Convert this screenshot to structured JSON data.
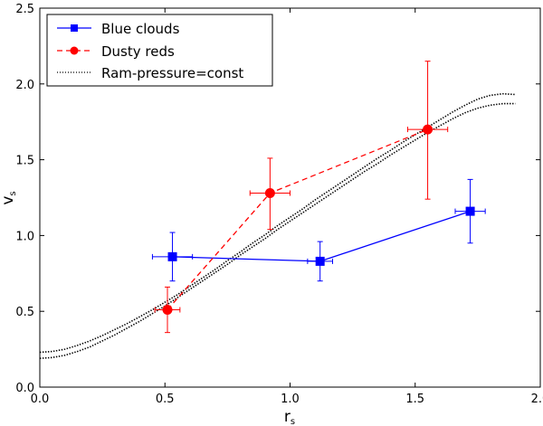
{
  "chart_data": {
    "type": "line",
    "xlabel": "r",
    "xlabel_sub": "s",
    "ylabel": "v",
    "ylabel_sub": "s",
    "xlim": [
      0.0,
      2.0
    ],
    "ylim": [
      0.0,
      2.5
    ],
    "x_ticks": [
      0.0,
      0.5,
      1.0,
      1.5,
      2.0
    ],
    "x_tick_labels": [
      "0.0",
      "0.5",
      "1.0",
      "1.5",
      "2.0"
    ],
    "y_ticks": [
      0.0,
      0.5,
      1.0,
      1.5,
      2.0,
      2.5
    ],
    "y_tick_labels": [
      "0.0",
      "0.5",
      "1.0",
      "1.5",
      "2.0",
      "2.5"
    ],
    "legend_position": "top-left",
    "series": [
      {
        "name": "Blue clouds",
        "color": "#0000ff",
        "linestyle": "solid",
        "marker": "square",
        "points": [
          {
            "x": 0.53,
            "y": 0.86,
            "xerr": 0.08,
            "yerr_low": 0.16,
            "yerr_high": 0.16
          },
          {
            "x": 1.12,
            "y": 0.83,
            "xerr": 0.05,
            "yerr_low": 0.13,
            "yerr_high": 0.13
          },
          {
            "x": 1.72,
            "y": 1.16,
            "xerr": 0.06,
            "yerr_low": 0.21,
            "yerr_high": 0.21
          }
        ]
      },
      {
        "name": "Dusty reds",
        "color": "#ff0000",
        "linestyle": "dashed",
        "marker": "circle",
        "points": [
          {
            "x": 0.51,
            "y": 0.51,
            "xerr": 0.05,
            "yerr_low": 0.15,
            "yerr_high": 0.15
          },
          {
            "x": 0.92,
            "y": 1.28,
            "xerr": 0.08,
            "yerr_low": 0.24,
            "yerr_high": 0.23
          },
          {
            "x": 1.55,
            "y": 1.7,
            "xerr": 0.08,
            "yerr_low": 0.46,
            "yerr_high": 0.45
          }
        ]
      },
      {
        "name": "Ram-pressure=const",
        "color": "#000000",
        "linestyle": "dotted",
        "marker": "none",
        "curves": [
          {
            "x": [
              0.0,
              0.05,
              0.1,
              0.15,
              0.2,
              0.25,
              0.3,
              0.35,
              0.4,
              0.45,
              0.5,
              0.55,
              0.6,
              0.65,
              0.7,
              0.75,
              0.8,
              0.85,
              0.9,
              0.95,
              1.0,
              1.05,
              1.1,
              1.15,
              1.2,
              1.25,
              1.3,
              1.35,
              1.4,
              1.45,
              1.5,
              1.55,
              1.6,
              1.65,
              1.7,
              1.75,
              1.8,
              1.85,
              1.9
            ],
            "y": [
              0.23,
              0.235,
              0.25,
              0.275,
              0.305,
              0.34,
              0.38,
              0.42,
              0.465,
              0.51,
              0.56,
              0.61,
              0.665,
              0.72,
              0.775,
              0.835,
              0.89,
              0.95,
              1.005,
              1.065,
              1.12,
              1.175,
              1.235,
              1.29,
              1.345,
              1.4,
              1.455,
              1.51,
              1.56,
              1.615,
              1.665,
              1.715,
              1.765,
              1.815,
              1.86,
              1.9,
              1.925,
              1.935,
              1.93
            ]
          },
          {
            "x": [
              0.0,
              0.05,
              0.1,
              0.15,
              0.2,
              0.25,
              0.3,
              0.35,
              0.4,
              0.45,
              0.5,
              0.55,
              0.6,
              0.65,
              0.7,
              0.75,
              0.8,
              0.85,
              0.9,
              0.95,
              1.0,
              1.05,
              1.1,
              1.15,
              1.2,
              1.25,
              1.3,
              1.35,
              1.4,
              1.45,
              1.5,
              1.55,
              1.6,
              1.65,
              1.7,
              1.75,
              1.8,
              1.85,
              1.9
            ],
            "y": [
              0.19,
              0.195,
              0.21,
              0.235,
              0.265,
              0.305,
              0.345,
              0.39,
              0.435,
              0.485,
              0.535,
              0.59,
              0.645,
              0.7,
              0.755,
              0.81,
              0.87,
              0.925,
              0.98,
              1.04,
              1.095,
              1.15,
              1.205,
              1.26,
              1.315,
              1.37,
              1.425,
              1.475,
              1.53,
              1.58,
              1.63,
              1.68,
              1.725,
              1.77,
              1.81,
              1.84,
              1.86,
              1.87,
              1.87
            ]
          }
        ]
      }
    ]
  }
}
